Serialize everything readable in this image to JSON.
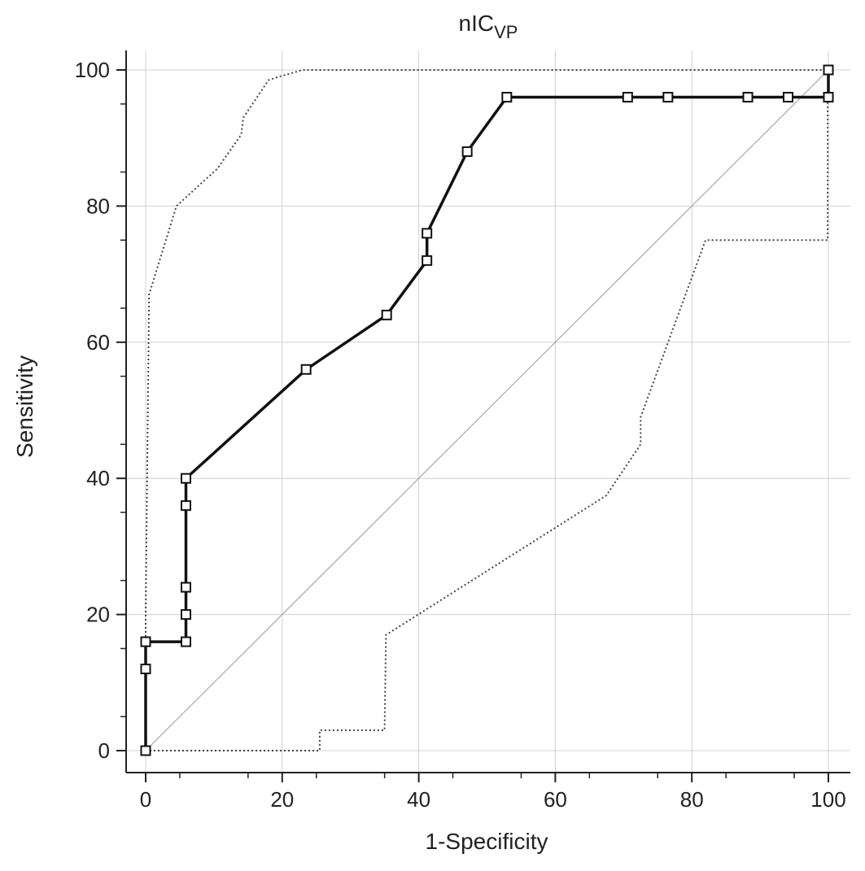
{
  "chart_data": {
    "type": "line",
    "title": "nIC",
    "title_subscript": "VP",
    "xlabel": "1-Specificity",
    "ylabel": "Sensitivity",
    "xlim": [
      0,
      100
    ],
    "ylim": [
      0,
      100
    ],
    "xticks": [
      0,
      20,
      40,
      60,
      80,
      100
    ],
    "yticks": [
      0,
      20,
      40,
      60,
      80,
      100
    ],
    "grid": true,
    "series": [
      {
        "role": "roc",
        "style": "solid-thick",
        "marker": "square",
        "x": [
          0,
          0,
          0,
          5.9,
          5.9,
          5.9,
          5.9,
          5.9,
          23.5,
          35.3,
          41.2,
          41.2,
          47.1,
          52.9,
          70.6,
          76.5,
          88.2,
          94.1,
          100,
          100
        ],
        "y": [
          0,
          12,
          16,
          16,
          20,
          24,
          36,
          40,
          56,
          64,
          72,
          76,
          88,
          96,
          96,
          96,
          96,
          96,
          96,
          100
        ]
      },
      {
        "role": "upper-confidence-bound",
        "style": "dotted",
        "x": [
          0,
          0,
          0.5,
          4.5,
          10.5,
          14,
          14.3,
          18,
          19.5,
          23,
          74,
          100
        ],
        "y": [
          0,
          20,
          67,
          80,
          85.5,
          90.5,
          93,
          98.5,
          99,
          100,
          100,
          100
        ]
      },
      {
        "role": "lower-confidence-bound",
        "style": "dotted",
        "x": [
          0,
          25.5,
          25.5,
          35,
          35.2,
          67.5,
          72.5,
          72.5,
          82,
          99.9,
          99.9,
          100
        ],
        "y": [
          0,
          0,
          3,
          3,
          17,
          37.5,
          45,
          49,
          75,
          75,
          96,
          100
        ]
      },
      {
        "role": "diagonal-reference",
        "style": "thin",
        "x": [
          0,
          100
        ],
        "y": [
          0,
          100
        ]
      }
    ]
  }
}
